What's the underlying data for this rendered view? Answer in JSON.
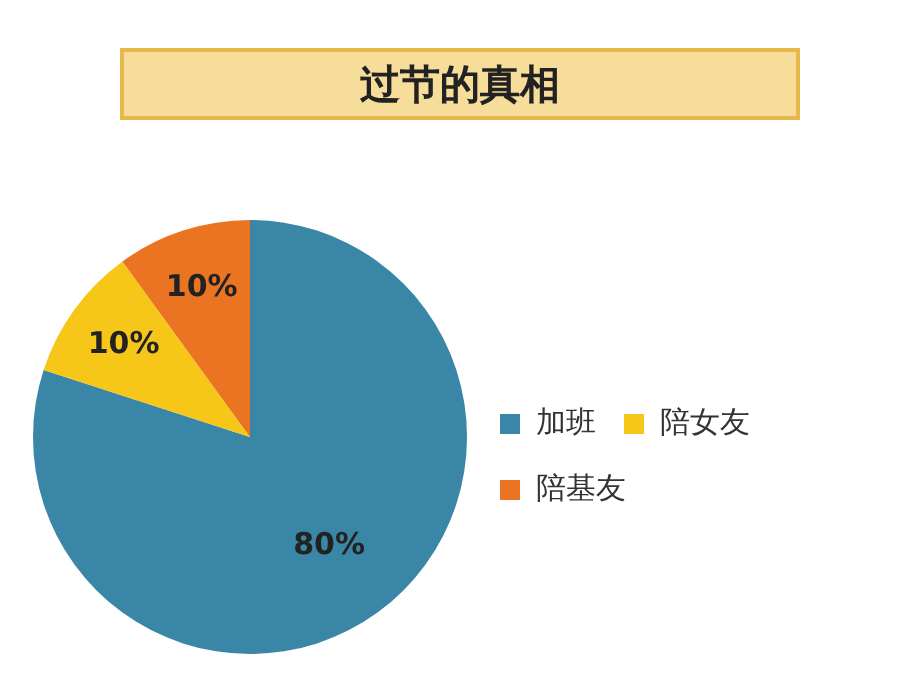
{
  "chart_data": {
    "type": "pie",
    "title": "过节的真相",
    "categories": [
      "加班",
      "陪女友",
      "陪基友"
    ],
    "values": [
      80,
      10,
      10
    ],
    "colors": [
      "#3a86a6",
      "#f6c619",
      "#ea7422"
    ],
    "value_labels": [
      "80%",
      "10%",
      "10%"
    ],
    "legend": "right"
  }
}
